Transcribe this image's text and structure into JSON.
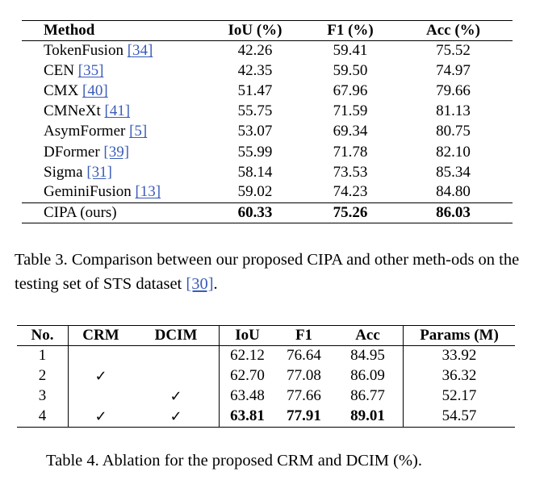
{
  "table3": {
    "headers": [
      "Method",
      "IoU (%)",
      "F1 (%)",
      "Acc (%)"
    ],
    "rows": [
      {
        "method": "TokenFusion",
        "ref": "[34]",
        "iou": "42.26",
        "f1": "59.41",
        "acc": "75.52"
      },
      {
        "method": "CEN",
        "ref": "[35]",
        "iou": "42.35",
        "f1": "59.50",
        "acc": "74.97"
      },
      {
        "method": "CMX",
        "ref": "[40]",
        "iou": "51.47",
        "f1": "67.96",
        "acc": "79.66"
      },
      {
        "method": "CMNeXt",
        "ref": "[41]",
        "iou": "55.75",
        "f1": "71.59",
        "acc": "81.13"
      },
      {
        "method": "AsymFormer",
        "ref": "[5]",
        "iou": "53.07",
        "f1": "69.34",
        "acc": "80.75"
      },
      {
        "method": "DFormer",
        "ref": "[39]",
        "iou": "55.99",
        "f1": "71.78",
        "acc": "82.10"
      },
      {
        "method": "Sigma",
        "ref": "[31]",
        "iou": "58.14",
        "f1": "73.53",
        "acc": "85.34"
      },
      {
        "method": "GeminiFusion",
        "ref": "[13]",
        "iou": "59.02",
        "f1": "74.23",
        "acc": "84.80"
      }
    ],
    "final": {
      "method": "CIPA (ours)",
      "iou": "60.33",
      "f1": "75.26",
      "acc": "86.03"
    },
    "caption_before_ref": "Table 3. Comparison between our proposed CIPA and other meth-ods on the testing set of STS dataset ",
    "caption_ref": "[30]",
    "caption_after_ref": "."
  },
  "table4": {
    "headers": [
      "No.",
      "CRM",
      "DCIM",
      "IoU",
      "F1",
      "Acc",
      "Params (M)"
    ],
    "check_mark": "✓",
    "rows": [
      {
        "no": "1",
        "crm": "",
        "dcim": "",
        "iou": "62.12",
        "f1": "76.64",
        "acc": "84.95",
        "params": "33.92"
      },
      {
        "no": "2",
        "crm": "✓",
        "dcim": "",
        "iou": "62.70",
        "f1": "77.08",
        "acc": "86.09",
        "params": "36.32"
      },
      {
        "no": "3",
        "crm": "",
        "dcim": "✓",
        "iou": "63.48",
        "f1": "77.66",
        "acc": "86.77",
        "params": "52.17"
      },
      {
        "no": "4",
        "crm": "✓",
        "dcim": "✓",
        "iou": "63.81",
        "f1": "77.91",
        "acc": "89.01",
        "params": "54.57"
      }
    ],
    "caption": "Table 4. Ablation for the proposed CRM and DCIM (%)."
  }
}
